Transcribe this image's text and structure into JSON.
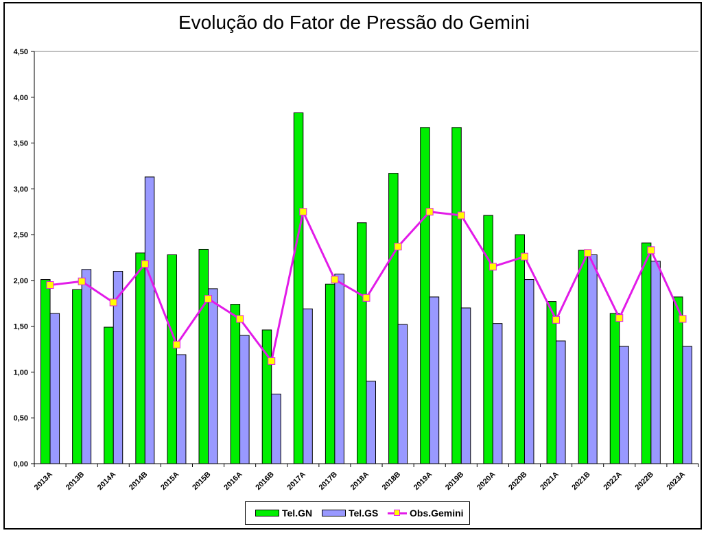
{
  "chart_data": {
    "type": "bar",
    "title": "Evolução do Fator de Pressão do Gemini",
    "xlabel": "",
    "ylabel": "",
    "ylim": [
      0,
      4.5
    ],
    "yticks": [
      "0,00",
      "0,50",
      "1,00",
      "1,50",
      "2,00",
      "2,50",
      "3,00",
      "3,50",
      "4,00",
      "4,50"
    ],
    "grid": false,
    "legend_position": "bottom",
    "categories": [
      "2013A",
      "2013B",
      "2014A",
      "2014B",
      "2015A",
      "2015B",
      "2016A",
      "2016B",
      "2017A",
      "2017B",
      "2018A",
      "2018B",
      "2019A",
      "2019B",
      "2020A",
      "2020B",
      "2021A",
      "2021B",
      "2022A",
      "2022B",
      "2023A"
    ],
    "series": [
      {
        "name": "Tel.GN",
        "type": "bar",
        "color": "#00ee00",
        "values": [
          2.01,
          1.9,
          1.49,
          2.3,
          2.28,
          2.34,
          1.74,
          1.46,
          3.83,
          1.96,
          2.63,
          3.17,
          3.67,
          3.67,
          2.71,
          2.5,
          1.77,
          2.33,
          1.64,
          2.41,
          1.82
        ]
      },
      {
        "name": "Tel.GS",
        "type": "bar",
        "color": "#9999ff",
        "values": [
          1.64,
          2.12,
          2.1,
          3.13,
          1.19,
          1.91,
          1.4,
          0.76,
          1.69,
          2.07,
          0.9,
          1.52,
          1.82,
          1.7,
          1.53,
          2.01,
          1.34,
          2.28,
          1.28,
          2.21,
          1.28
        ]
      },
      {
        "name": "Obs.Gemini",
        "type": "line",
        "color": "#e21be8",
        "marker_color": "#ffff00",
        "values": [
          1.95,
          1.99,
          1.76,
          2.18,
          1.3,
          1.8,
          1.58,
          1.12,
          2.75,
          2.01,
          1.81,
          2.37,
          2.75,
          2.71,
          2.15,
          2.26,
          1.57,
          2.3,
          1.59,
          2.33,
          1.58
        ]
      }
    ]
  },
  "legend": {
    "items": [
      "Tel.GN",
      "Tel.GS",
      "Obs.Gemini"
    ]
  }
}
